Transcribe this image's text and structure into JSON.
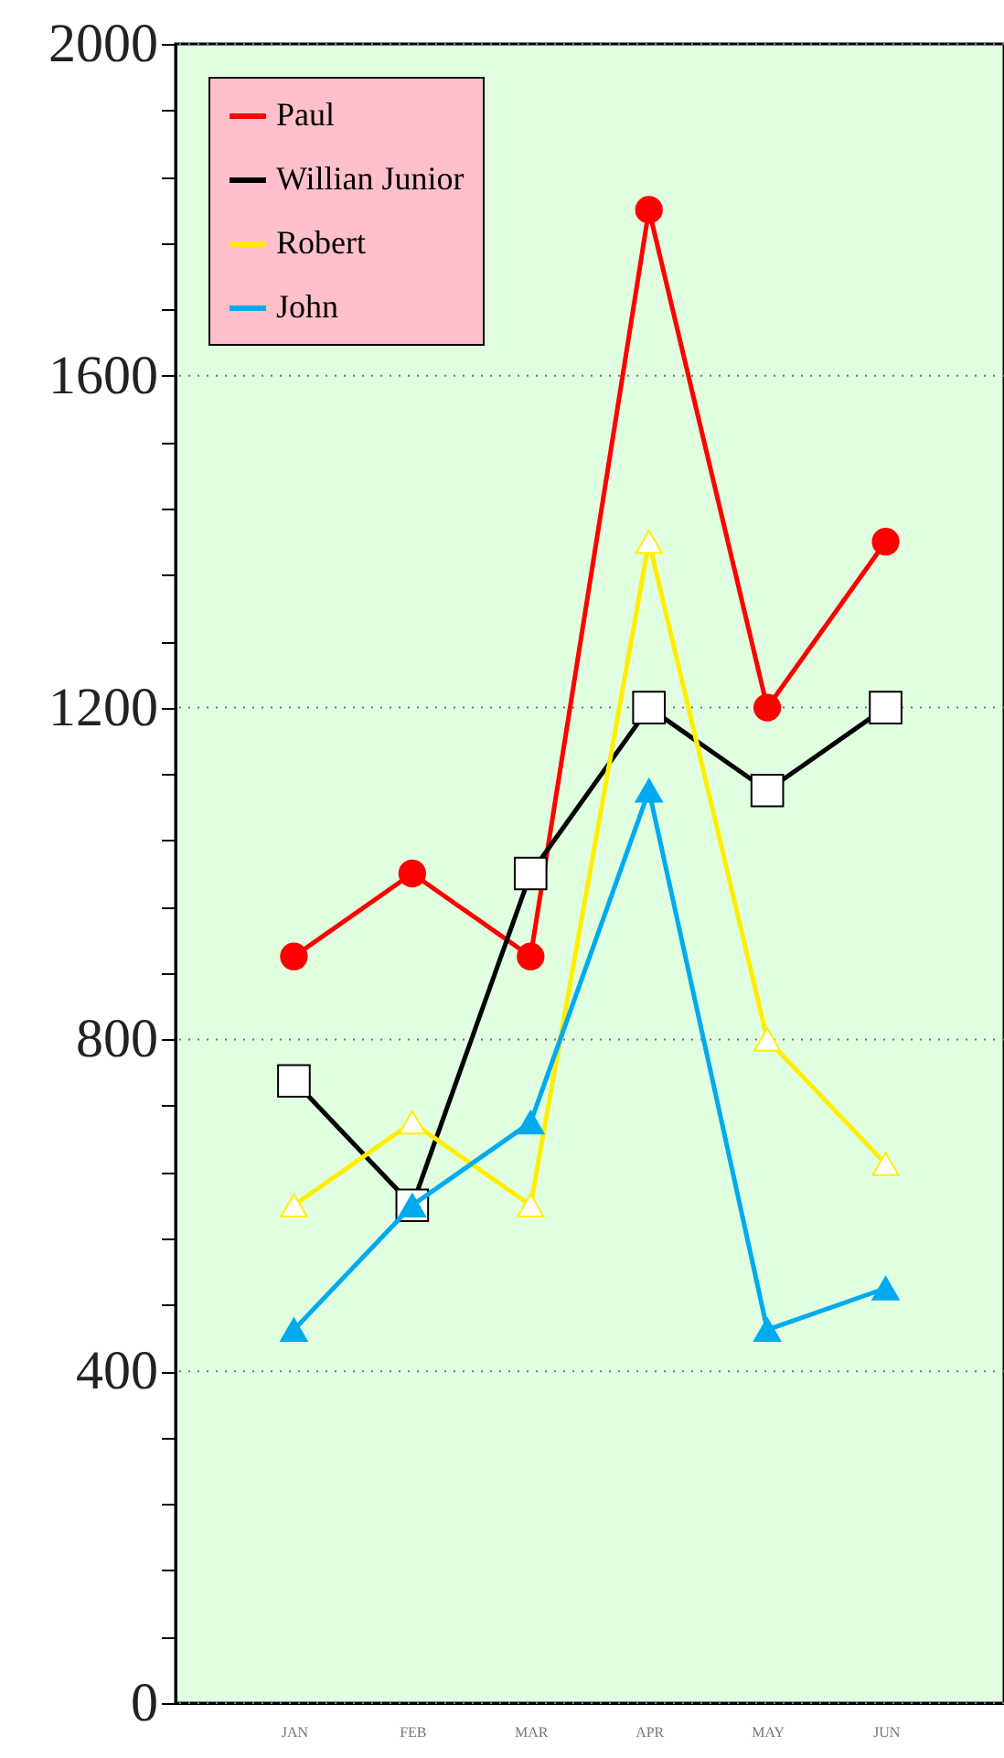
{
  "chart_data": {
    "type": "line",
    "categories": [
      "JAN",
      "FEB",
      "MAR",
      "APR",
      "MAY",
      "JUN"
    ],
    "series": [
      {
        "name": "Paul",
        "color": "#ff0000",
        "marker": "circle",
        "values": [
          900,
          1000,
          900,
          1800,
          1200,
          1400
        ]
      },
      {
        "name": "Willian Junior",
        "color": "#000000",
        "marker": "square",
        "values": [
          750,
          600,
          1000,
          1200,
          1100,
          1200
        ]
      },
      {
        "name": "Robert",
        "color": "#ffee00",
        "marker": "triangle",
        "values": [
          600,
          700,
          600,
          1400,
          800,
          650
        ]
      },
      {
        "name": "John",
        "color": "#00aaee",
        "marker": "triangle",
        "values": [
          450,
          600,
          700,
          1100,
          450,
          500
        ]
      }
    ],
    "ylim": [
      0,
      2000
    ],
    "yticks": [
      0,
      {
        "value": 80,
        "label": null
      },
      {
        "value": 160,
        "label": null
      },
      {
        "value": 240,
        "label": null
      },
      {
        "value": 320,
        "label": null
      },
      400,
      {
        "value": 480,
        "label": null
      },
      {
        "value": 560,
        "label": null
      },
      {
        "value": 640,
        "label": null
      },
      {
        "value": 720,
        "label": null
      },
      800,
      {
        "value": 880,
        "label": null
      },
      {
        "value": 960,
        "label": null
      },
      {
        "value": 1040,
        "label": null
      },
      {
        "value": 1120,
        "label": null
      },
      1200,
      {
        "value": 1280,
        "label": null
      },
      {
        "value": 1360,
        "label": null
      },
      {
        "value": 1440,
        "label": null
      },
      {
        "value": 1520,
        "label": null
      },
      1600,
      {
        "value": 1680,
        "label": null
      },
      {
        "value": 1760,
        "label": null
      },
      {
        "value": 1840,
        "label": null
      },
      {
        "value": 1920,
        "label": null
      },
      2000
    ],
    "grid": "y",
    "legend": "top left",
    "line_style": "solid"
  }
}
